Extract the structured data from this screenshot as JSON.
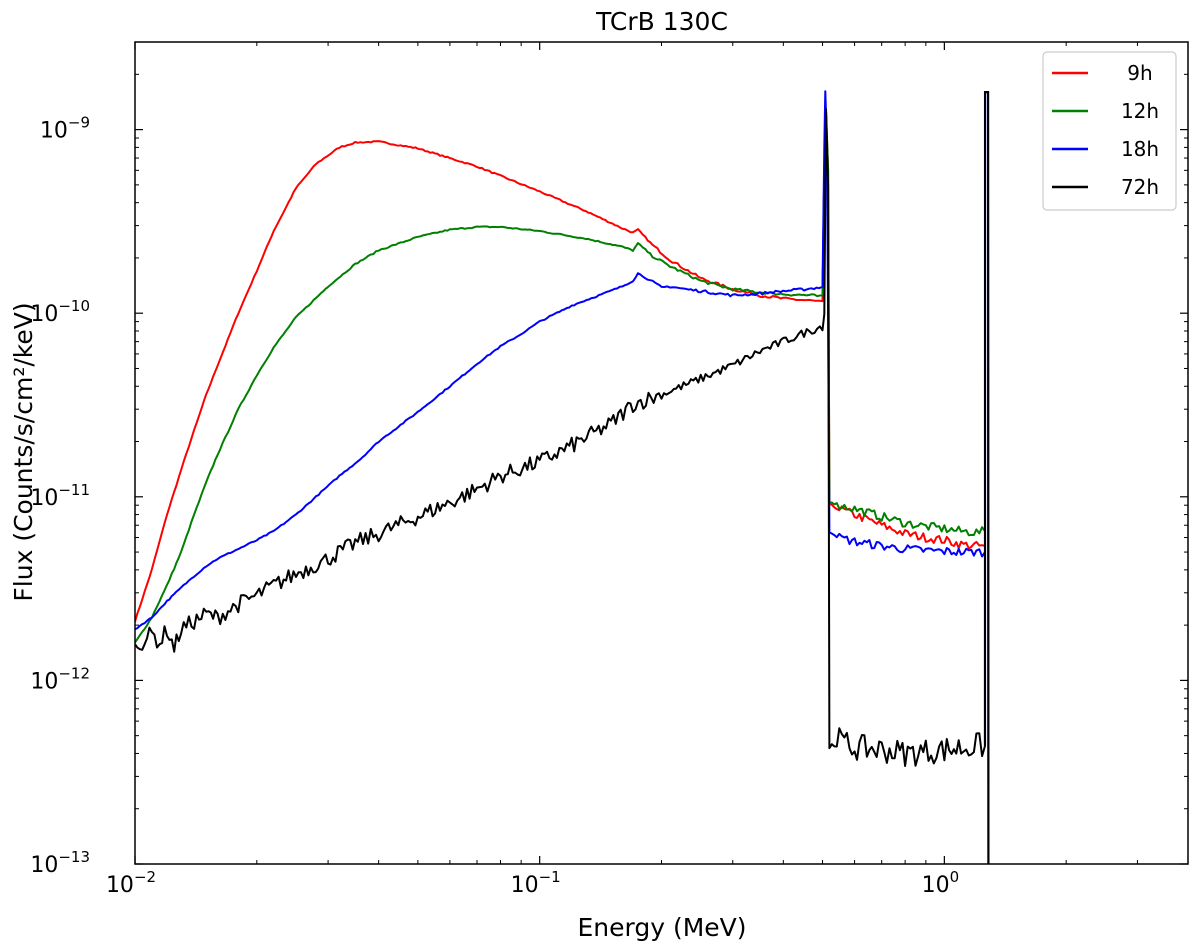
{
  "chart_data": {
    "type": "line",
    "title": "TCrB 130C",
    "xlabel": "Energy (MeV)",
    "ylabel": "Flux (Counts/s/cm²/keV)",
    "xscale": "log",
    "yscale": "log",
    "xlim": [
      0.01,
      4.0
    ],
    "ylim": [
      1e-13,
      3e-09
    ],
    "x_ticks": [
      {
        "value": 0.01,
        "base": "10",
        "exp": "−2"
      },
      {
        "value": 0.1,
        "base": "10",
        "exp": "−1"
      },
      {
        "value": 1,
        "base": "10",
        "exp": "0"
      }
    ],
    "y_ticks": [
      {
        "value": 1e-13,
        "base": "10",
        "exp": "−13"
      },
      {
        "value": 1e-12,
        "base": "10",
        "exp": "−12"
      },
      {
        "value": 1e-11,
        "base": "10",
        "exp": "−11"
      },
      {
        "value": 1e-10,
        "base": "10",
        "exp": "−10"
      },
      {
        "value": 1e-09,
        "base": "10",
        "exp": "−9"
      }
    ],
    "legend_position": "top-right",
    "series": [
      {
        "name": "9h",
        "color": "#ff0000",
        "points": [
          [
            0.01,
            2.1e-12
          ],
          [
            0.011,
            4e-12
          ],
          [
            0.012,
            8e-12
          ],
          [
            0.013,
            1.4e-11
          ],
          [
            0.014,
            2.3e-11
          ],
          [
            0.015,
            3.6e-11
          ],
          [
            0.016,
            5.2e-11
          ],
          [
            0.018,
            1e-10
          ],
          [
            0.02,
            1.7e-10
          ],
          [
            0.022,
            2.8e-10
          ],
          [
            0.025,
            4.8e-10
          ],
          [
            0.028,
            6.5e-10
          ],
          [
            0.032,
            8e-10
          ],
          [
            0.035,
            8.5e-10
          ],
          [
            0.04,
            8.6e-10
          ],
          [
            0.05,
            7.9e-10
          ],
          [
            0.07,
            6.3e-10
          ],
          [
            0.1,
            4.6e-10
          ],
          [
            0.13,
            3.6e-10
          ],
          [
            0.16,
            2.9e-10
          ],
          [
            0.17,
            2.75e-10
          ],
          [
            0.175,
            2.85e-10
          ],
          [
            0.19,
            2.35e-10
          ],
          [
            0.21,
            1.95e-10
          ],
          [
            0.25,
            1.55e-10
          ],
          [
            0.3,
            1.35e-10
          ],
          [
            0.35,
            1.25e-10
          ],
          [
            0.4,
            1.2e-10
          ],
          [
            0.47,
            1.17e-10
          ],
          [
            0.5,
            1.15e-10
          ],
          [
            0.505,
            6e-10
          ],
          [
            0.51,
            1.25e-09
          ],
          [
            0.516,
            6e-10
          ],
          [
            0.52,
            9e-12
          ],
          [
            0.55,
            8.6e-12
          ],
          [
            0.6,
            8e-12
          ],
          [
            0.7,
            7e-12
          ],
          [
            0.8,
            6.3e-12
          ],
          [
            0.9,
            6e-12
          ],
          [
            1.0,
            5.8e-12
          ],
          [
            1.1,
            5.5e-12
          ],
          [
            1.2,
            5.4e-12
          ],
          [
            1.26,
            5.4e-12
          ]
        ]
      },
      {
        "name": "12h",
        "color": "#008000",
        "points": [
          [
            0.01,
            1.6e-12
          ],
          [
            0.011,
            2.2e-12
          ],
          [
            0.012,
            3.3e-12
          ],
          [
            0.013,
            5e-12
          ],
          [
            0.014,
            8e-12
          ],
          [
            0.015,
            1.2e-11
          ],
          [
            0.016,
            1.7e-11
          ],
          [
            0.018,
            3e-11
          ],
          [
            0.02,
            4.6e-11
          ],
          [
            0.022,
            6.5e-11
          ],
          [
            0.025,
            9.5e-11
          ],
          [
            0.03,
            1.4e-10
          ],
          [
            0.035,
            1.85e-10
          ],
          [
            0.04,
            2.2e-10
          ],
          [
            0.05,
            2.6e-10
          ],
          [
            0.06,
            2.85e-10
          ],
          [
            0.07,
            2.95e-10
          ],
          [
            0.08,
            2.95e-10
          ],
          [
            0.1,
            2.8e-10
          ],
          [
            0.13,
            2.55e-10
          ],
          [
            0.16,
            2.3e-10
          ],
          [
            0.17,
            2.2e-10
          ],
          [
            0.175,
            2.4e-10
          ],
          [
            0.19,
            2.05e-10
          ],
          [
            0.21,
            1.8e-10
          ],
          [
            0.25,
            1.5e-10
          ],
          [
            0.3,
            1.35e-10
          ],
          [
            0.35,
            1.3e-10
          ],
          [
            0.4,
            1.27e-10
          ],
          [
            0.47,
            1.25e-10
          ],
          [
            0.5,
            1.23e-10
          ],
          [
            0.505,
            6e-10
          ],
          [
            0.51,
            1.3e-09
          ],
          [
            0.516,
            6e-10
          ],
          [
            0.52,
            9.5e-12
          ],
          [
            0.55,
            9e-12
          ],
          [
            0.6,
            8.6e-12
          ],
          [
            0.7,
            7.8e-12
          ],
          [
            0.8,
            7.2e-12
          ],
          [
            0.9,
            6.9e-12
          ],
          [
            1.0,
            6.7e-12
          ],
          [
            1.1,
            6.5e-12
          ],
          [
            1.2,
            6.4e-12
          ],
          [
            1.26,
            6.5e-12
          ]
        ]
      },
      {
        "name": "18h",
        "color": "#0000ff",
        "points": [
          [
            0.01,
            1.9e-12
          ],
          [
            0.011,
            2.2e-12
          ],
          [
            0.012,
            2.7e-12
          ],
          [
            0.013,
            3.2e-12
          ],
          [
            0.014,
            3.7e-12
          ],
          [
            0.015,
            4.2e-12
          ],
          [
            0.016,
            4.6e-12
          ],
          [
            0.018,
            5.2e-12
          ],
          [
            0.02,
            5.8e-12
          ],
          [
            0.022,
            6.5e-12
          ],
          [
            0.025,
            8e-12
          ],
          [
            0.028,
            1e-11
          ],
          [
            0.032,
            1.3e-11
          ],
          [
            0.036,
            1.6e-11
          ],
          [
            0.04,
            2e-11
          ],
          [
            0.05,
            2.9e-11
          ],
          [
            0.06,
            4e-11
          ],
          [
            0.07,
            5.3e-11
          ],
          [
            0.08,
            6.6e-11
          ],
          [
            0.09,
            7.7e-11
          ],
          [
            0.1,
            9e-11
          ],
          [
            0.12,
            1.1e-10
          ],
          [
            0.14,
            1.25e-10
          ],
          [
            0.16,
            1.4e-10
          ],
          [
            0.17,
            1.5e-10
          ],
          [
            0.175,
            1.65e-10
          ],
          [
            0.19,
            1.48e-10
          ],
          [
            0.2,
            1.38e-10
          ],
          [
            0.21,
            1.4e-10
          ],
          [
            0.23,
            1.35e-10
          ],
          [
            0.25,
            1.32e-10
          ],
          [
            0.3,
            1.25e-10
          ],
          [
            0.35,
            1.28e-10
          ],
          [
            0.4,
            1.32e-10
          ],
          [
            0.45,
            1.35e-10
          ],
          [
            0.49,
            1.38e-10
          ],
          [
            0.5,
            1.4e-10
          ],
          [
            0.505,
            8e-10
          ],
          [
            0.508,
            1.6e-09
          ],
          [
            0.513,
            8e-10
          ],
          [
            0.52,
            6.5e-12
          ],
          [
            0.55,
            6e-12
          ],
          [
            0.6,
            5.7e-12
          ],
          [
            0.7,
            5.4e-12
          ],
          [
            0.8,
            5.2e-12
          ],
          [
            0.9,
            5.1e-12
          ],
          [
            1.0,
            5.05e-12
          ],
          [
            1.1,
            5e-12
          ],
          [
            1.2,
            5e-12
          ],
          [
            1.26,
            5e-12
          ]
        ]
      },
      {
        "name": "72h",
        "color": "#000000",
        "points": [
          [
            0.01,
            1.5e-12
          ],
          [
            0.011,
            1.8e-12
          ],
          [
            0.0115,
            1.6e-12
          ],
          [
            0.012,
            1.9e-12
          ],
          [
            0.0125,
            1.5e-12
          ],
          [
            0.013,
            1.9e-12
          ],
          [
            0.014,
            2.1e-12
          ],
          [
            0.015,
            2.3e-12
          ],
          [
            0.016,
            2.2e-12
          ],
          [
            0.018,
            2.6e-12
          ],
          [
            0.02,
            2.9e-12
          ],
          [
            0.022,
            3.3e-12
          ],
          [
            0.025,
            3.8e-12
          ],
          [
            0.03,
            4.6e-12
          ],
          [
            0.035,
            5.6e-12
          ],
          [
            0.04,
            6.3e-12
          ],
          [
            0.05,
            7.8e-12
          ],
          [
            0.06,
            9.3e-12
          ],
          [
            0.07,
            1.1e-11
          ],
          [
            0.08,
            1.3e-11
          ],
          [
            0.1,
            1.55e-11
          ],
          [
            0.12,
            1.9e-11
          ],
          [
            0.15,
            2.5e-11
          ],
          [
            0.17,
            3.2e-11
          ],
          [
            0.2,
            3.6e-11
          ],
          [
            0.25,
            4.4e-11
          ],
          [
            0.3,
            5.2e-11
          ],
          [
            0.35,
            6.2e-11
          ],
          [
            0.4,
            7e-11
          ],
          [
            0.45,
            7.8e-11
          ],
          [
            0.5,
            8.5e-11
          ],
          [
            0.505,
            1e-10
          ],
          [
            0.51,
            1.3e-09
          ],
          [
            0.516,
            5e-10
          ],
          [
            0.52,
            4.3e-13
          ],
          [
            0.55,
            4.7e-13
          ],
          [
            0.6,
            4.3e-13
          ],
          [
            0.7,
            4.2e-13
          ],
          [
            0.8,
            4e-13
          ],
          [
            0.9,
            4.1e-13
          ],
          [
            1.0,
            4.2e-13
          ],
          [
            1.1,
            4.3e-13
          ],
          [
            1.2,
            4.4e-13
          ],
          [
            1.26,
            4.4e-13
          ]
        ]
      }
    ],
    "peaks": [
      {
        "energy": 1.275,
        "value": 1.6e-09,
        "color": "#000000"
      }
    ]
  }
}
